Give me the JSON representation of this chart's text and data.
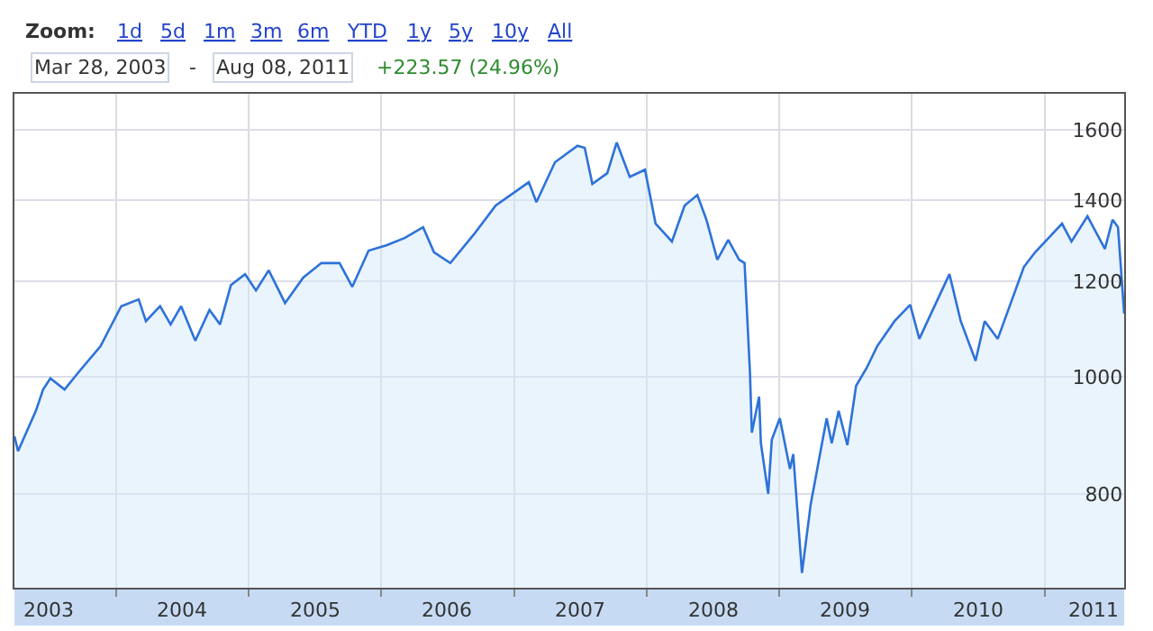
{
  "chart_data": {
    "type": "area",
    "annotations": [
      "Zoom:",
      "1d",
      "5d",
      "1m",
      "3m",
      "6m",
      "YTD",
      "1y",
      "5y",
      "10y",
      "All",
      "Mar 28, 2003",
      "-",
      "Aug 08, 2011",
      "+223.57 (24.96%)"
    ],
    "x": [
      "2003-03-28",
      "2003-04-07",
      "2003-05-26",
      "2003-06-15",
      "2003-07-05",
      "2003-08-13",
      "2003-09-22",
      "2003-11-20",
      "2004-01-16",
      "2004-03-04",
      "2004-03-24",
      "2004-05-02",
      "2004-05-31",
      "2004-06-29",
      "2004-08-07",
      "2004-09-15",
      "2004-10-14",
      "2004-11-13",
      "2004-12-22",
      "2005-01-21",
      "2005-02-25",
      "2005-04-11",
      "2005-05-31",
      "2005-07-20",
      "2005-09-08",
      "2005-10-13",
      "2005-11-27",
      "2006-01-16",
      "2006-03-07",
      "2006-04-26",
      "2006-05-26",
      "2006-07-10",
      "2006-09-13",
      "2006-11-12",
      "2007-02-11",
      "2007-03-04",
      "2007-04-24",
      "2007-06-25",
      "2007-07-15",
      "2007-08-05",
      "2007-09-15",
      "2007-10-11",
      "2007-11-16",
      "2007-12-28",
      "2008-01-26",
      "2008-03-11",
      "2008-04-15",
      "2008-05-20",
      "2008-06-14",
      "2008-07-14",
      "2008-08-13",
      "2008-09-12",
      "2008-09-27",
      "2008-10-12",
      "2008-10-17",
      "2008-11-06",
      "2008-11-11",
      "2008-12-01",
      "2008-12-11",
      "2009-01-02",
      "2009-01-30",
      "2009-02-08",
      "2009-03-04",
      "2009-03-28",
      "2009-04-26",
      "2009-05-11",
      "2009-05-25",
      "2009-06-13",
      "2009-07-07",
      "2009-07-31",
      "2009-08-29",
      "2009-09-27",
      "2009-11-14",
      "2009-12-27",
      "2010-01-21",
      "2010-04-14",
      "2010-05-15",
      "2010-06-25",
      "2010-07-20",
      "2010-08-25",
      "2010-11-05",
      "2010-12-06",
      "2011-02-18",
      "2011-03-16",
      "2011-04-29",
      "2011-06-16",
      "2011-07-07",
      "2011-07-22",
      "2011-08-08"
    ],
    "series": [
      {
        "color": "#2d72d9",
        "values": [
          893,
          868,
          937,
          976,
          997,
          976,
          1010,
          1060,
          1144,
          1159,
          1112,
          1144,
          1105,
          1144,
          1071,
          1136,
          1105,
          1191,
          1216,
          1179,
          1225,
          1151,
          1208,
          1242,
          1242,
          1187,
          1272,
          1285,
          1303,
          1330,
          1268,
          1242,
          1312,
          1386,
          1449,
          1395,
          1505,
          1553,
          1547,
          1444,
          1474,
          1563,
          1464,
          1484,
          1339,
          1294,
          1386,
          1414,
          1349,
          1250,
          1298,
          1250,
          1242,
          1007,
          899,
          963,
          881,
          800,
          887,
          924,
          839,
          863,
          688,
          784,
          874,
          924,
          881,
          937,
          878,
          983,
          1017,
          1060,
          1112,
          1147,
          1075,
          1216,
          1112,
          1031,
          1112,
          1075,
          1233,
          1268,
          1339,
          1294,
          1358,
          1276,
          1349,
          1330,
          1128
        ]
      }
    ],
    "xlim": [
      "2003-03-28",
      "2011-08-08"
    ],
    "xticks": [
      {
        "value": "2003-07-02",
        "label": "2003"
      },
      {
        "value": "2004-01-01",
        "label": null
      },
      {
        "value": "2004-07-02",
        "label": "2004"
      },
      {
        "value": "2005-01-01",
        "label": null
      },
      {
        "value": "2005-07-02",
        "label": "2005"
      },
      {
        "value": "2006-01-01",
        "label": null
      },
      {
        "value": "2006-07-02",
        "label": "2006"
      },
      {
        "value": "2007-01-01",
        "label": null
      },
      {
        "value": "2007-07-02",
        "label": "2007"
      },
      {
        "value": "2008-01-01",
        "label": null
      },
      {
        "value": "2008-07-02",
        "label": "2008"
      },
      {
        "value": "2009-01-01",
        "label": null
      },
      {
        "value": "2009-07-02",
        "label": "2009"
      },
      {
        "value": "2010-01-01",
        "label": null
      },
      {
        "value": "2010-07-02",
        "label": "2010"
      },
      {
        "value": "2011-01-01",
        "label": null
      },
      {
        "value": "2011-05-15",
        "label": "2011"
      }
    ],
    "ylim": [
      669,
      1715
    ],
    "yticks": [
      800,
      1000,
      1200,
      1400,
      1600
    ],
    "log": "y",
    "grid": true
  }
}
